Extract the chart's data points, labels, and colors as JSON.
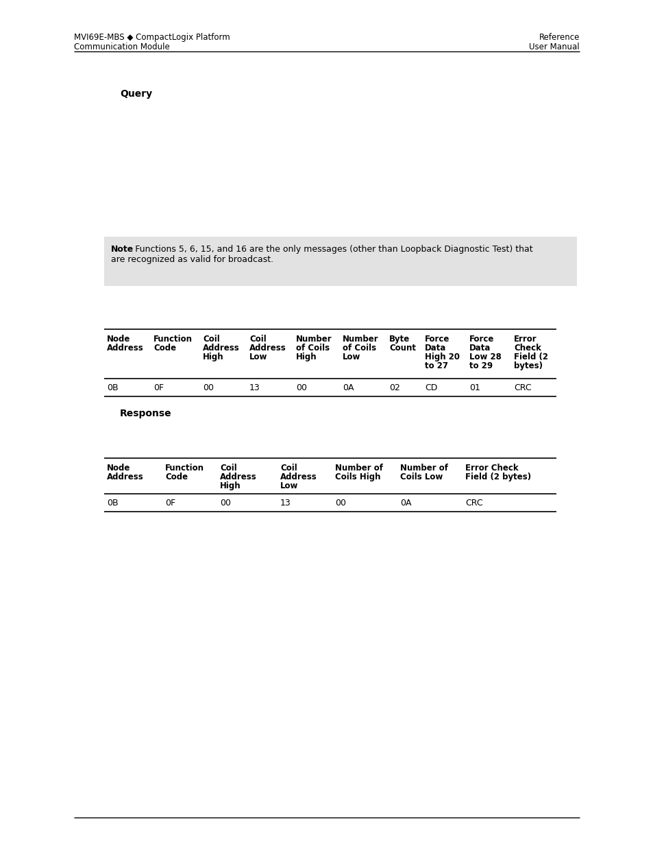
{
  "header_left_line1": "MVI69E-MBS ◆ CompactLogix Platform",
  "header_left_line2": "Communication Module",
  "header_right_line1": "Reference",
  "header_right_line2": "User Manual",
  "query_label": "Query",
  "note_bold": "Note",
  "note_rest_line1": ": Functions 5, 6, 15, and 16 are the only messages (other than Loopback Diagnostic Test) that",
  "note_line2": "are recognized as valid for broadcast.",
  "table1_col_headers": [
    "Node\nAddress",
    "Function\nCode",
    "Coil\nAddress\nHigh",
    "Coil\nAddress\nLow",
    "Number\nof Coils\nHigh",
    "Number\nof Coils\nLow",
    "Byte\nCount",
    "Force\nData\nHigh 20\nto 27",
    "Force\nData\nLow 28\nto 29",
    "Error\nCheck\nField (2\nbytes)"
  ],
  "table1_col_widths": [
    68,
    72,
    68,
    68,
    68,
    68,
    52,
    65,
    65,
    66
  ],
  "table1_data": [
    "0B",
    "0F",
    "00",
    "13",
    "00",
    "0A",
    "02",
    "CD",
    "01",
    "CRC"
  ],
  "response_label": "Response",
  "table2_col_headers": [
    "Node\nAddress",
    "Function\nCode",
    "Coil\nAddress\nHigh",
    "Coil\nAddress\nLow",
    "Number of\nCoils High",
    "Number of\nCoils Low",
    "Error Check\nField (2 bytes)"
  ],
  "table2_col_widths": [
    85,
    80,
    88,
    80,
    95,
    95,
    137
  ],
  "table2_data": [
    "0B",
    "0F",
    "00",
    "13",
    "00",
    "0A",
    "CRC"
  ],
  "bg_color": "#ffffff",
  "note_bg": "#e2e2e2",
  "text_color": "#000000"
}
